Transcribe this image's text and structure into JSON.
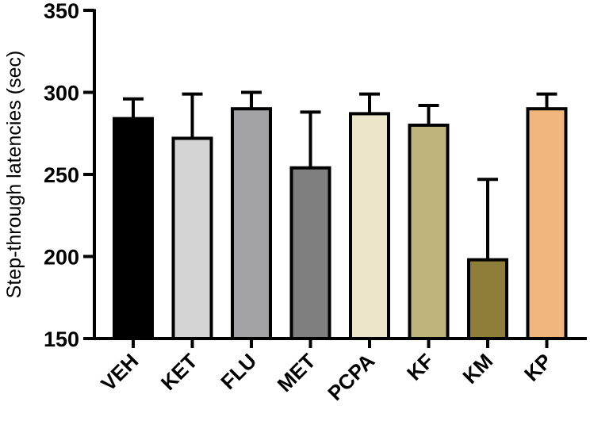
{
  "chart_data": {
    "type": "bar",
    "title": "",
    "xlabel": "",
    "ylabel": "Step-through latencies (sec)",
    "ylim": [
      150,
      350
    ],
    "yticks": [
      150,
      200,
      250,
      300,
      350
    ],
    "grid": false,
    "legend": null,
    "categories": [
      "VEH",
      "KET",
      "FLU",
      "MET",
      "PCPA",
      "KF",
      "KM",
      "KP"
    ],
    "values": [
      284,
      272,
      290,
      254,
      287,
      280,
      198,
      290
    ],
    "error_upper": [
      296,
      299,
      300,
      288,
      299,
      292,
      247,
      299
    ],
    "error_bars": [
      12,
      27,
      10,
      34,
      12,
      12,
      49,
      9
    ],
    "colors": [
      "#000000",
      "#d4d4d4",
      "#a3a3a6",
      "#7f7f7f",
      "#ebe5c9",
      "#bfb57c",
      "#8e7e3a",
      "#f1b67c"
    ]
  }
}
